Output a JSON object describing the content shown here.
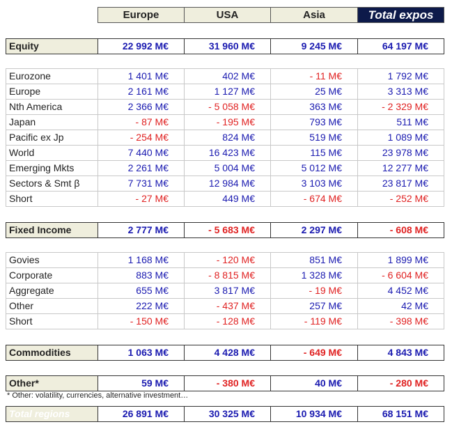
{
  "header": {
    "columns": [
      "Europe",
      "USA",
      "Asia",
      "Total expos"
    ]
  },
  "sections": [
    {
      "title": "Equity",
      "totals": [
        "22 992 M€",
        "31 960 M€",
        "9 245 M€",
        "64 197 M€"
      ],
      "rows": [
        {
          "label": "Eurozone",
          "values": [
            "1 401 M€",
            "402 M€",
            "- 11 M€",
            "1 792 M€"
          ]
        },
        {
          "label": "Europe",
          "values": [
            "2 161 M€",
            "1 127 M€",
            "25 M€",
            "3 313 M€"
          ]
        },
        {
          "label": "Nth America",
          "values": [
            "2 366 M€",
            "- 5 058 M€",
            "363 M€",
            "- 2 329 M€"
          ]
        },
        {
          "label": "Japan",
          "values": [
            "- 87 M€",
            "- 195 M€",
            "793 M€",
            "511 M€"
          ]
        },
        {
          "label": "Pacific ex Jp",
          "values": [
            "- 254 M€",
            "824 M€",
            "519 M€",
            "1 089 M€"
          ]
        },
        {
          "label": "World",
          "values": [
            "7 440 M€",
            "16 423 M€",
            "115 M€",
            "23 978 M€"
          ]
        },
        {
          "label": "Emerging Mkts",
          "values": [
            "2 261 M€",
            "5 004 M€",
            "5 012 M€",
            "12 277 M€"
          ]
        },
        {
          "label": "Sectors & Smt β",
          "values": [
            "7 731 M€",
            "12 984 M€",
            "3 103 M€",
            "23 817 M€"
          ]
        },
        {
          "label": "Short",
          "values": [
            "- 27 M€",
            "449 M€",
            "- 674 M€",
            "- 252 M€"
          ]
        }
      ]
    },
    {
      "title": "Fixed Income",
      "totals": [
        "2 777 M€",
        "- 5 683 M€",
        "2 297 M€",
        "- 608 M€"
      ],
      "rows": [
        {
          "label": "Govies",
          "values": [
            "1 168 M€",
            "- 120 M€",
            "851 M€",
            "1 899 M€"
          ]
        },
        {
          "label": "Corporate",
          "values": [
            "883 M€",
            "- 8 815 M€",
            "1 328 M€",
            "- 6 604 M€"
          ]
        },
        {
          "label": "Aggregate",
          "values": [
            "655 M€",
            "3 817 M€",
            "- 19 M€",
            "4 452 M€"
          ]
        },
        {
          "label": "Other",
          "values": [
            "222 M€",
            "- 437 M€",
            "257 M€",
            "42 M€"
          ]
        },
        {
          "label": "Short",
          "values": [
            "- 150 M€",
            "- 128 M€",
            "- 119 M€",
            "- 398 M€"
          ]
        }
      ]
    },
    {
      "title": "Commodities",
      "totals": [
        "1 063 M€",
        "4 428 M€",
        "- 649 M€",
        "4 843 M€"
      ],
      "rows": []
    },
    {
      "title": "Other*",
      "totals": [
        "59 M€",
        "- 380 M€",
        "40 M€",
        "- 280 M€"
      ],
      "rows": []
    }
  ],
  "footnote": "* Other: volatility, currencies, alternative investment…",
  "total": {
    "label": "Total regions",
    "values": [
      "26 891 M€",
      "30 325 M€",
      "10 934 M€",
      "68 151 M€"
    ]
  }
}
